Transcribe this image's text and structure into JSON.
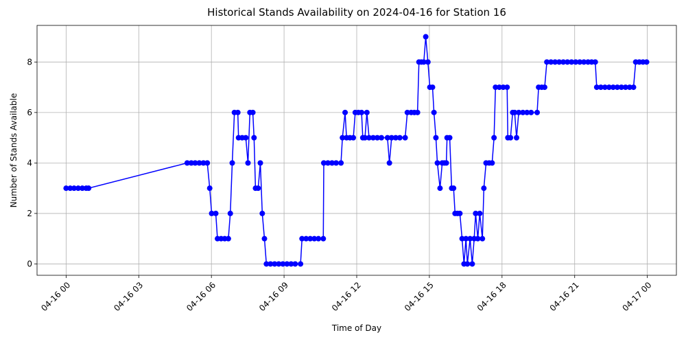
{
  "chart_data": {
    "type": "line",
    "title": "Historical Stands Availability on 2024-04-16 for Station 16",
    "xlabel": "Time of Day",
    "ylabel": "Number of Stands Available",
    "color": "#0000ff",
    "grid": true,
    "xlim": [
      -1.2,
      25.2
    ],
    "ylim": [
      -0.45,
      9.45
    ],
    "xticks": [
      {
        "value": 0,
        "label": "04-16 00"
      },
      {
        "value": 3,
        "label": "04-16 03"
      },
      {
        "value": 6,
        "label": "04-16 06"
      },
      {
        "value": 9,
        "label": "04-16 09"
      },
      {
        "value": 12,
        "label": "04-16 12"
      },
      {
        "value": 15,
        "label": "04-16 15"
      },
      {
        "value": 18,
        "label": "04-16 18"
      },
      {
        "value": 21,
        "label": "04-16 21"
      },
      {
        "value": 24,
        "label": "04-17 00"
      }
    ],
    "yticks": [
      0,
      2,
      4,
      6,
      8
    ],
    "x": [
      0,
      0.17,
      0.33,
      0.5,
      0.67,
      0.83,
      0.93,
      5.0,
      5.17,
      5.33,
      5.5,
      5.67,
      5.83,
      5.93,
      6.01,
      6.18,
      6.25,
      6.4,
      6.55,
      6.7,
      6.78,
      6.86,
      6.95,
      7.09,
      7.12,
      7.27,
      7.42,
      7.51,
      7.59,
      7.71,
      7.76,
      7.82,
      7.93,
      8.02,
      8.1,
      8.19,
      8.27,
      8.44,
      8.61,
      8.78,
      8.95,
      9.12,
      9.29,
      9.46,
      9.68,
      9.74,
      9.91,
      10.08,
      10.25,
      10.42,
      10.62,
      10.64,
      10.81,
      10.98,
      11.15,
      11.35,
      11.41,
      11.52,
      11.58,
      11.72,
      11.86,
      11.94,
      12.07,
      12.2,
      12.25,
      12.34,
      12.42,
      12.51,
      12.68,
      12.85,
      13.02,
      13.27,
      13.35,
      13.44,
      13.61,
      13.78,
      14.0,
      14.09,
      14.25,
      14.38,
      14.51,
      14.57,
      14.67,
      14.77,
      14.85,
      14.94,
      15.02,
      15.13,
      15.19,
      15.27,
      15.33,
      15.44,
      15.53,
      15.62,
      15.7,
      15.73,
      15.84,
      15.92,
      16.0,
      16.06,
      16.16,
      16.26,
      16.35,
      16.43,
      16.51,
      16.57,
      16.68,
      16.77,
      16.85,
      16.91,
      17.0,
      17.08,
      17.19,
      17.25,
      17.34,
      17.47,
      17.59,
      17.67,
      17.73,
      17.89,
      18.05,
      18.21,
      18.24,
      18.35,
      18.44,
      18.52,
      18.6,
      18.69,
      18.86,
      19.03,
      19.2,
      19.45,
      19.51,
      19.64,
      19.76,
      19.85,
      20.02,
      20.19,
      20.36,
      20.53,
      20.7,
      20.87,
      21.04,
      21.21,
      21.38,
      21.55,
      21.7,
      21.85,
      21.91,
      22.08,
      22.25,
      22.42,
      22.59,
      22.76,
      22.93,
      23.1,
      23.27,
      23.43,
      23.52,
      23.67,
      23.82,
      23.97
    ],
    "values": [
      3,
      3,
      3,
      3,
      3,
      3,
      3,
      4,
      4,
      4,
      4,
      4,
      4,
      3,
      2,
      2,
      1,
      1,
      1,
      1,
      2,
      4,
      6,
      6,
      5,
      5,
      5,
      4,
      6,
      6,
      5,
      3,
      3,
      4,
      2,
      1,
      0,
      0,
      0,
      0,
      0,
      0,
      0,
      0,
      0,
      1,
      1,
      1,
      1,
      1,
      1,
      4,
      4,
      4,
      4,
      4,
      5,
      6,
      5,
      5,
      5,
      6,
      6,
      6,
      5,
      5,
      6,
      5,
      5,
      5,
      5,
      5,
      4,
      5,
      5,
      5,
      5,
      6,
      6,
      6,
      6,
      8,
      8,
      8,
      9,
      8,
      7,
      7,
      6,
      5,
      4,
      3,
      4,
      4,
      4,
      5,
      5,
      3,
      3,
      2,
      2,
      2,
      1,
      0,
      1,
      0,
      1,
      0,
      1,
      2,
      1,
      2,
      1,
      3,
      4,
      4,
      4,
      5,
      7,
      7,
      7,
      7,
      5,
      5,
      6,
      6,
      5,
      6,
      6,
      6,
      6,
      6,
      7,
      7,
      7,
      8,
      8,
      8,
      8,
      8,
      8,
      8,
      8,
      8,
      8,
      8,
      8,
      8,
      7,
      7,
      7,
      7,
      7,
      7,
      7,
      7,
      7,
      7,
      8,
      8,
      8,
      8
    ]
  }
}
